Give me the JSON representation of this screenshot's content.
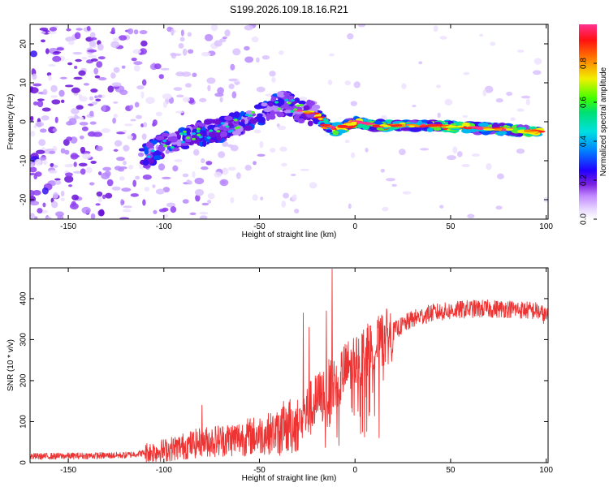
{
  "chart_data": [
    {
      "type": "heatmap",
      "title": "S199.2026.109.18.16.R21",
      "xlabel": "Height of straight line (km)",
      "ylabel": "Frequency (Hz)",
      "xlim": [
        -170,
        101
      ],
      "ylim": [
        -25,
        25
      ],
      "x_ticks": [
        -150,
        -100,
        -50,
        0,
        50,
        100
      ],
      "y_ticks": [
        -20,
        -10,
        0,
        10,
        20
      ],
      "colorbar": {
        "label": "Normalized spectral amplitude",
        "range": [
          0,
          1
        ],
        "ticks": [
          "0.0",
          "0.2",
          "0.4",
          "0.6",
          "0.8"
        ]
      },
      "ridge": {
        "x": [
          -110,
          -100,
          -90,
          -80,
          -70,
          -60,
          -50,
          -42,
          -35,
          -30,
          -20,
          -15,
          -10,
          -5,
          0,
          10,
          20,
          40,
          60,
          80,
          95
        ],
        "y": [
          -9,
          -6,
          -4,
          -3,
          -2,
          0,
          2,
          4,
          5,
          3,
          2,
          -1,
          -2,
          -1,
          0,
          -1,
          -1,
          -1,
          -1.5,
          -2,
          -2.5
        ]
      }
    },
    {
      "type": "line",
      "xlabel": "Height of straight line (km)",
      "ylabel": "SNR (10 * v/v)",
      "xlim": [
        -170,
        101
      ],
      "ylim": [
        0,
        475
      ],
      "x_ticks": [
        -150,
        -100,
        -50,
        0,
        50,
        100
      ],
      "y_ticks": [
        0,
        100,
        200,
        300,
        400
      ],
      "series": [
        {
          "name": "SNR",
          "color": "#ee3333",
          "trend_x": [
            -170,
            -120,
            -100,
            -80,
            -60,
            -40,
            -30,
            -20,
            -10,
            0,
            10,
            20,
            30,
            40,
            60,
            80,
            95,
            101
          ],
          "trend_y": [
            15,
            18,
            30,
            50,
            60,
            75,
            95,
            150,
            200,
            250,
            280,
            320,
            350,
            365,
            375,
            375,
            370,
            355
          ],
          "spikes": [
            [
              -12,
              472
            ],
            [
              -27,
              365
            ],
            [
              -24,
              330
            ],
            [
              -80,
              140
            ],
            [
              -15,
              370
            ]
          ]
        }
      ]
    }
  ]
}
